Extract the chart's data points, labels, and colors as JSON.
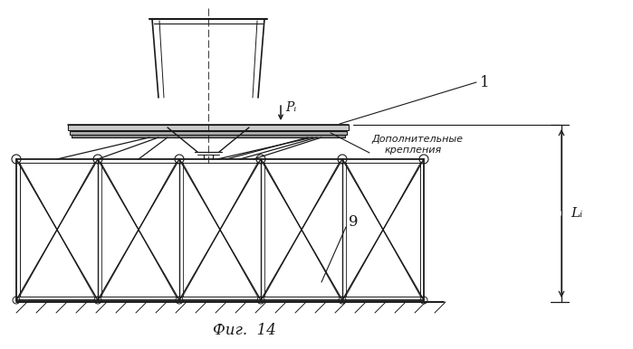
{
  "background_color": "#ffffff",
  "line_color": "#1a1a1a",
  "title": "Фиг.  14",
  "label_1": "1",
  "label_9": "9",
  "label_Pi": "Pᵢ",
  "label_dop": "Дополнительные",
  "label_krep": "крепления",
  "label_Li": "Lᵢ"
}
